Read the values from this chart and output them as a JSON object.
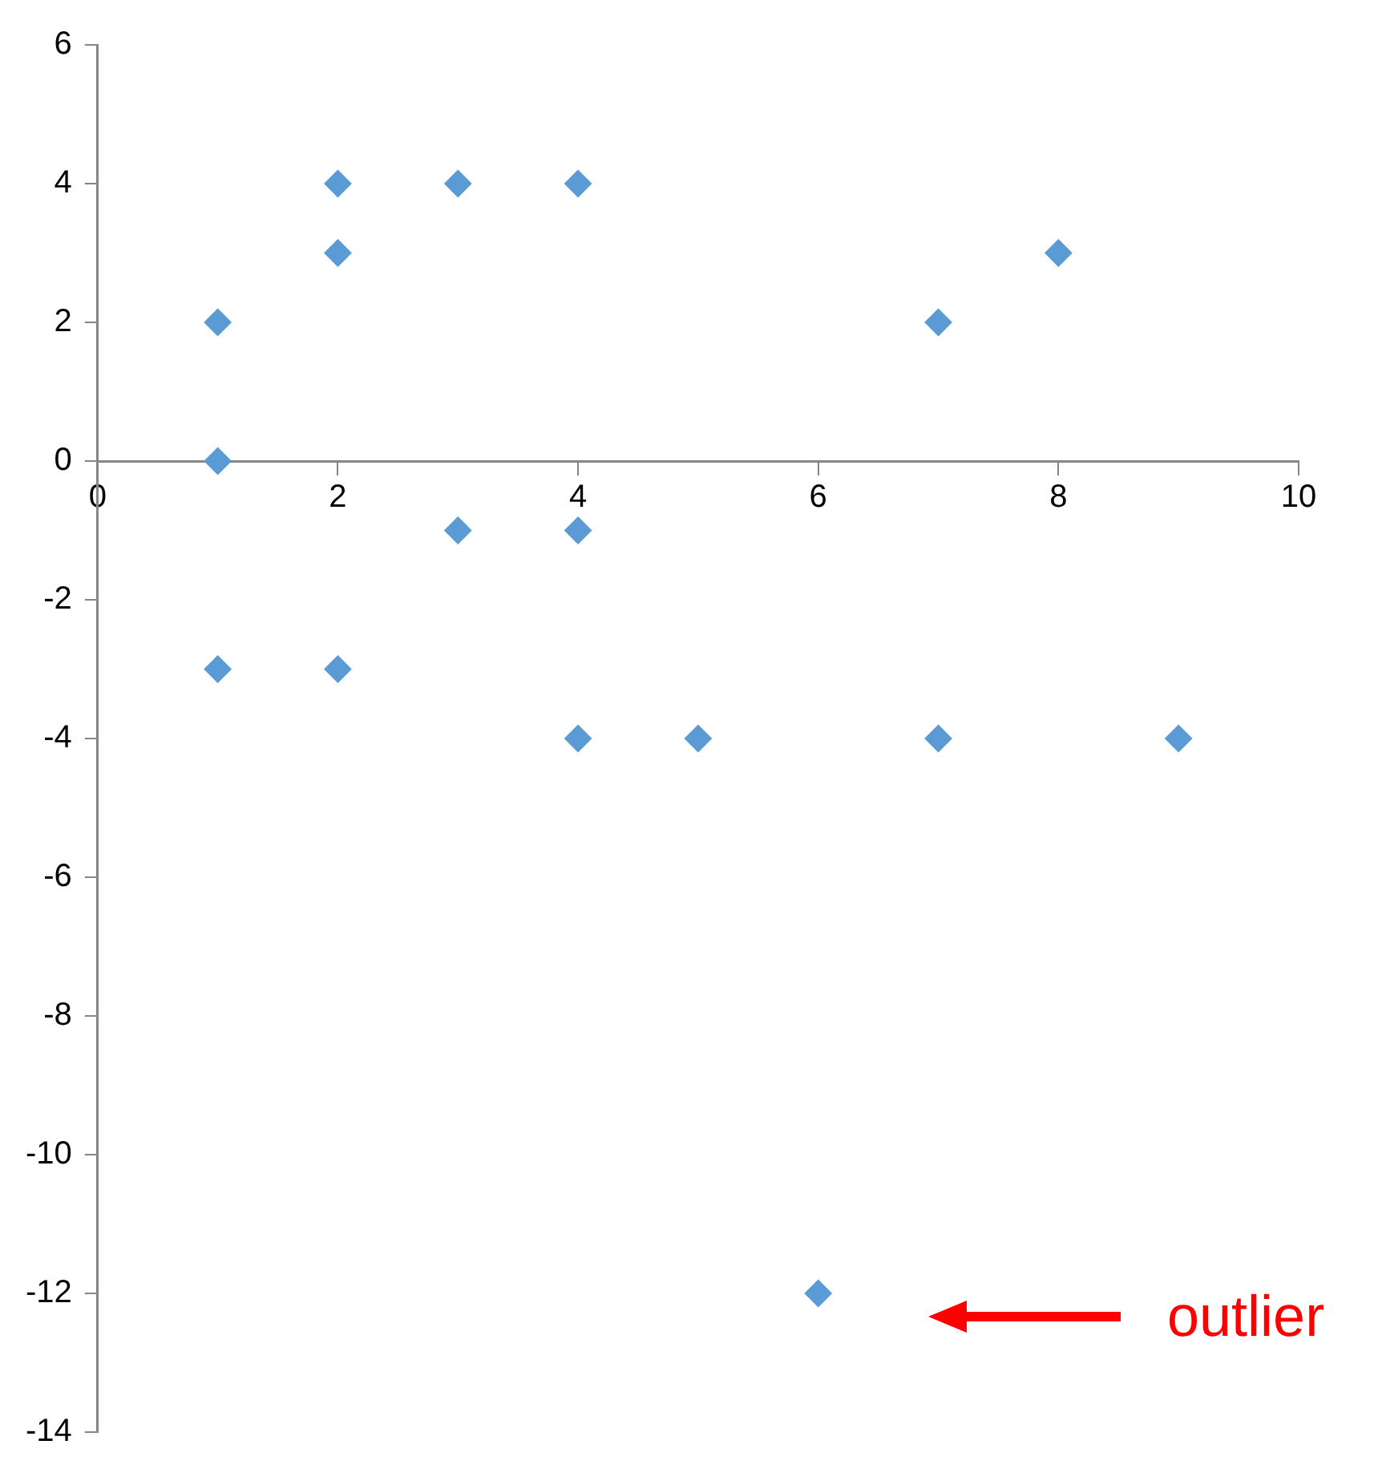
{
  "chart_data": {
    "type": "scatter",
    "marker": "diamond",
    "grid": false,
    "legend": false,
    "x": [
      1,
      1,
      2,
      2,
      3,
      4,
      7,
      8,
      3,
      4,
      1,
      2,
      4,
      5,
      7,
      9,
      6
    ],
    "values": [
      2,
      0,
      4,
      3,
      4,
      4,
      2,
      3,
      -1,
      -1,
      -3,
      -3,
      -4,
      -4,
      -4,
      -4,
      -12
    ],
    "color": "#5b9bd5",
    "xlim": [
      0,
      10
    ],
    "xticks": [
      0,
      2,
      4,
      6,
      8,
      10
    ],
    "ylim": [
      -14,
      6
    ],
    "yticks": [
      -14,
      -12,
      -10,
      -8,
      -6,
      -4,
      -2,
      0,
      2,
      4,
      6
    ],
    "annotations": [
      "outlier"
    ]
  }
}
